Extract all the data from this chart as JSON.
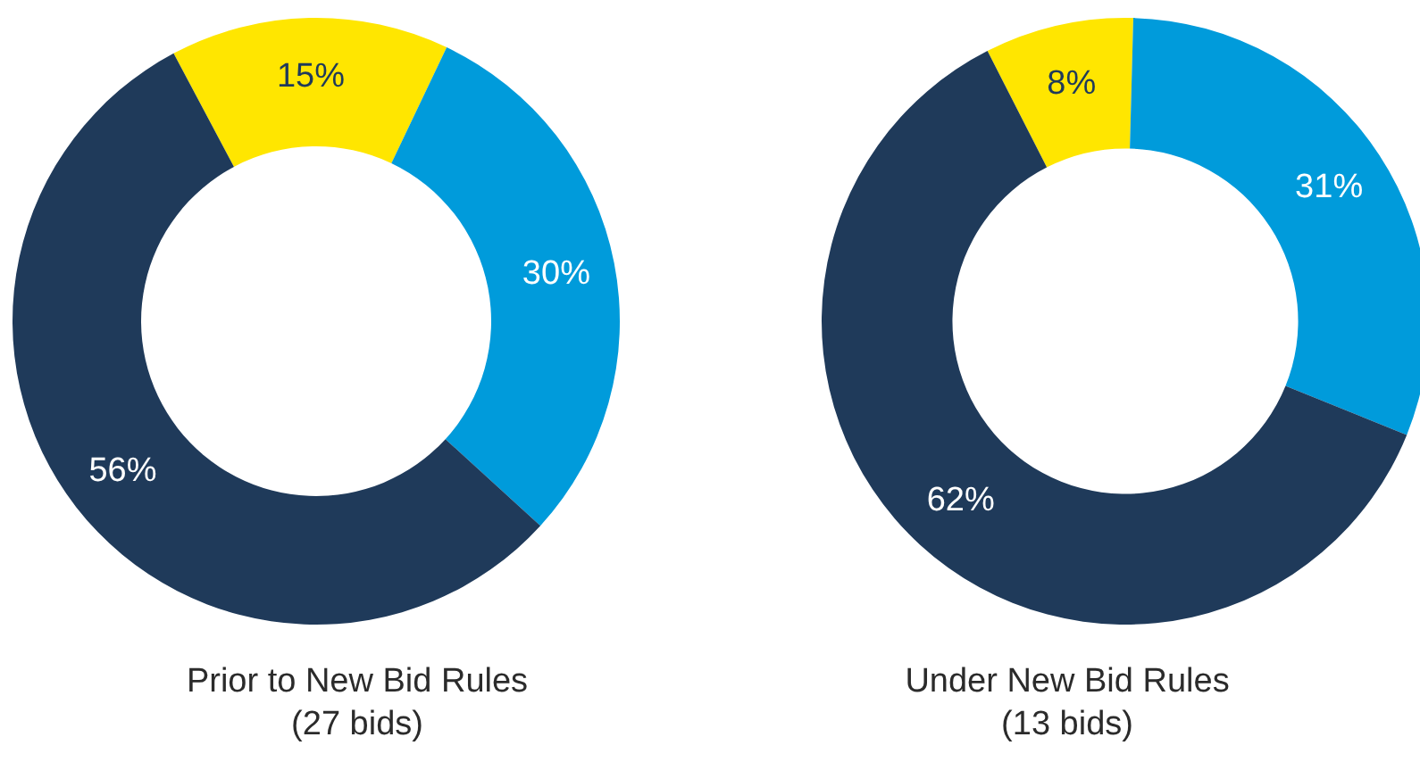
{
  "chart_data": [
    {
      "type": "donut",
      "title": "Prior to New Bid Rules\n(27 bids)",
      "categories": [
        null,
        null,
        null
      ],
      "values": [
        15,
        30,
        56
      ],
      "value_labels": [
        "15%",
        "30%",
        "56%"
      ],
      "colors": [
        "#ffe600",
        "#009bdb",
        "#1f3a5a"
      ]
    },
    {
      "type": "donut",
      "title": "Under New Bid Rules\n(13 bids)",
      "categories": [
        null,
        null,
        null
      ],
      "values": [
        8,
        31,
        62
      ],
      "value_labels": [
        "8%",
        "31%",
        "62%"
      ],
      "colors": [
        "#ffe600",
        "#009bdb",
        "#1f3a5a"
      ]
    }
  ]
}
